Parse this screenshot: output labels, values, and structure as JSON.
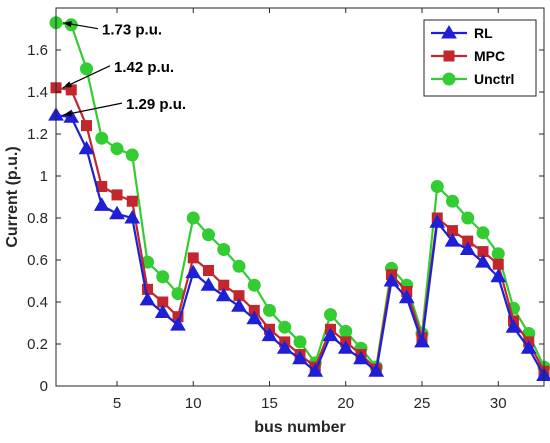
{
  "chart_data": {
    "type": "line",
    "xlabel": "bus number",
    "ylabel": "Current (p.u.)",
    "xlim": [
      1,
      33
    ],
    "ylim": [
      0,
      1.8
    ],
    "xticks": [
      5,
      10,
      15,
      20,
      25,
      30
    ],
    "yticks": [
      0,
      0.2,
      0.4,
      0.6,
      0.8,
      1,
      1.2,
      1.4,
      1.6
    ],
    "ytick_labels": [
      "0",
      "0.2",
      "0.4",
      "0.6",
      "0.8",
      "1",
      "1.2",
      "1.4",
      "1.6"
    ],
    "x": [
      1,
      2,
      3,
      4,
      5,
      6,
      7,
      8,
      9,
      10,
      11,
      12,
      13,
      14,
      15,
      16,
      17,
      18,
      19,
      20,
      21,
      22,
      23,
      24,
      25,
      26,
      27,
      28,
      29,
      30,
      31,
      32,
      33
    ],
    "grid": false,
    "legend_position": "top-right",
    "series": [
      {
        "name": "RL",
        "color": "#1f1fd6",
        "marker": "triangle",
        "values": [
          1.29,
          1.28,
          1.13,
          0.86,
          0.82,
          0.8,
          0.41,
          0.35,
          0.29,
          0.54,
          0.48,
          0.43,
          0.38,
          0.32,
          0.24,
          0.18,
          0.13,
          0.07,
          0.24,
          0.18,
          0.13,
          0.07,
          0.5,
          0.42,
          0.21,
          0.78,
          0.69,
          0.65,
          0.59,
          0.52,
          0.28,
          0.18,
          0.05
        ]
      },
      {
        "name": "MPC",
        "color": "#c1272d",
        "marker": "square",
        "values": [
          1.42,
          1.41,
          1.24,
          0.95,
          0.91,
          0.88,
          0.46,
          0.4,
          0.33,
          0.61,
          0.55,
          0.48,
          0.43,
          0.36,
          0.27,
          0.21,
          0.15,
          0.09,
          0.27,
          0.21,
          0.15,
          0.08,
          0.53,
          0.45,
          0.23,
          0.8,
          0.74,
          0.69,
          0.64,
          0.58,
          0.31,
          0.21,
          0.07
        ]
      },
      {
        "name": "Unctrl",
        "color": "#33cc33",
        "marker": "circle",
        "values": [
          1.73,
          1.72,
          1.51,
          1.18,
          1.13,
          1.1,
          0.59,
          0.52,
          0.44,
          0.8,
          0.72,
          0.65,
          0.57,
          0.48,
          0.36,
          0.28,
          0.21,
          0.11,
          0.34,
          0.26,
          0.18,
          0.09,
          0.56,
          0.48,
          0.25,
          0.95,
          0.88,
          0.8,
          0.73,
          0.63,
          0.37,
          0.25,
          0.09
        ]
      }
    ],
    "annotations": [
      {
        "text": "1.73 p.u.",
        "x": 1,
        "y": 1.73
      },
      {
        "text": "1.42 p.u.",
        "x": 1,
        "y": 1.42
      },
      {
        "text": "1.29 p.u.",
        "x": 1,
        "y": 1.29
      }
    ]
  }
}
